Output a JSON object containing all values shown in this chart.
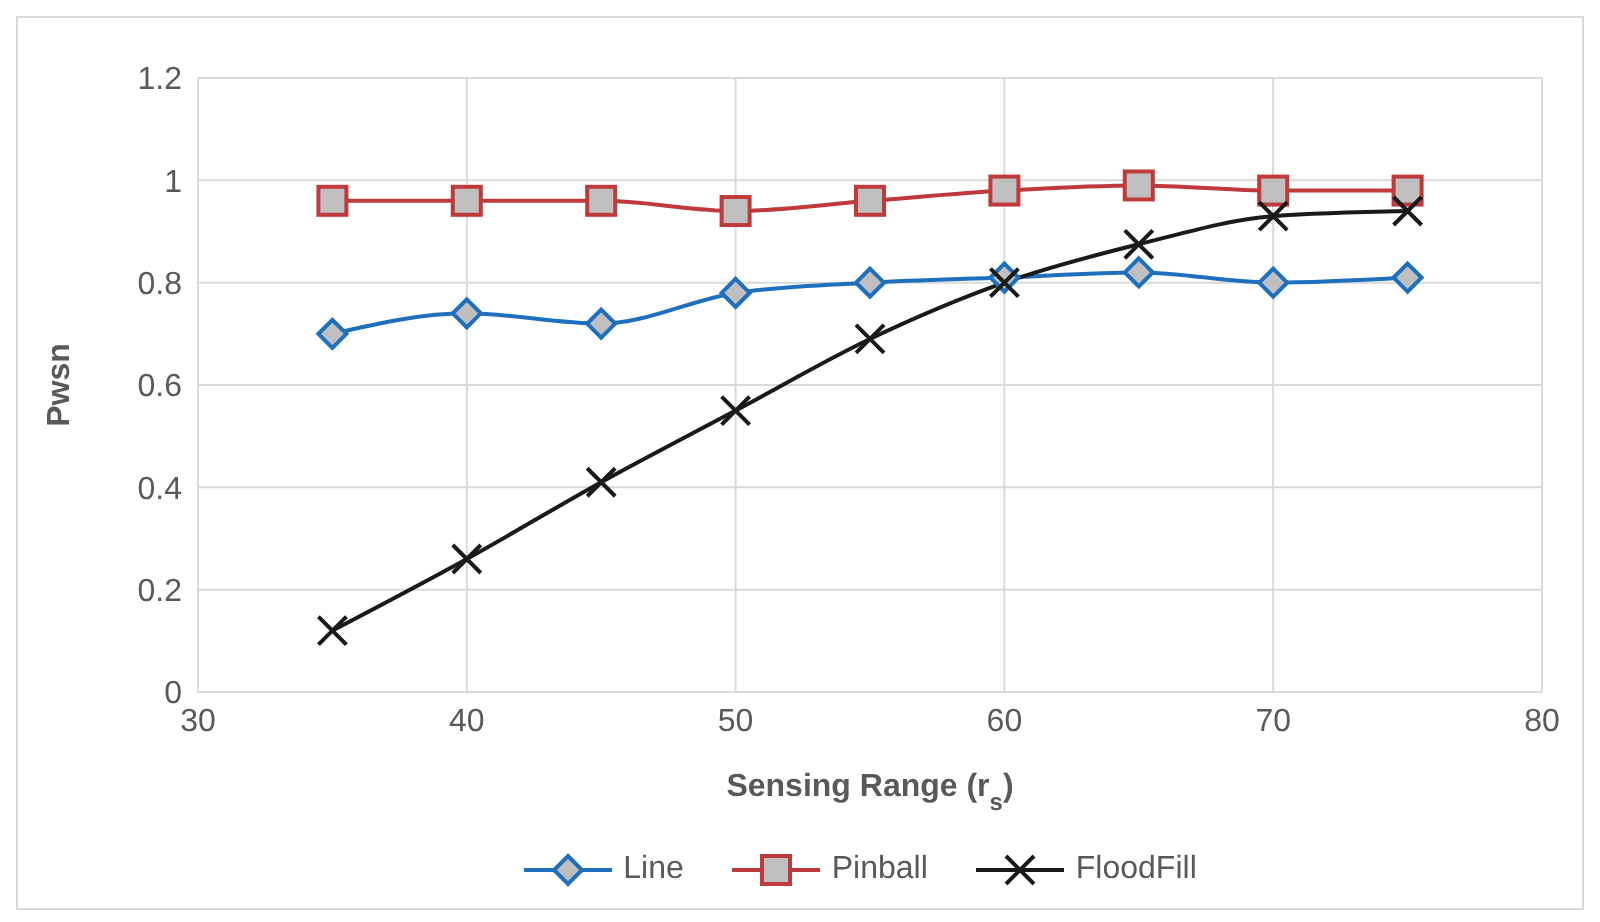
{
  "chart_data": {
    "type": "line",
    "xlabel": "Sensing Range (r$_{s}$)",
    "ylabel": "Pwsn",
    "x": [
      35,
      40,
      45,
      50,
      55,
      60,
      65,
      70,
      75
    ],
    "series": [
      {
        "name": "Line",
        "color": "#1f6fbf",
        "marker": "diamond",
        "values": [
          0.7,
          0.74,
          0.72,
          0.78,
          0.8,
          0.81,
          0.82,
          0.8,
          0.81
        ]
      },
      {
        "name": "Pinball",
        "color": "#c0393b",
        "marker": "square",
        "values": [
          0.96,
          0.96,
          0.96,
          0.94,
          0.96,
          0.98,
          0.99,
          0.98,
          0.98
        ]
      },
      {
        "name": "FloodFill",
        "color": "#1a1a1a",
        "marker": "cross",
        "values": [
          0.12,
          0.26,
          0.41,
          0.55,
          0.69,
          0.8,
          0.875,
          0.93,
          0.94
        ]
      }
    ],
    "xlim": [
      30,
      80
    ],
    "xticks": [
      30,
      40,
      50,
      60,
      70,
      80
    ],
    "ylim": [
      0,
      1.2
    ],
    "yticks": [
      0,
      0.2,
      0.4,
      0.6,
      0.8,
      1,
      1.2
    ],
    "grid": true,
    "legend": "bottom",
    "line_style": "solid"
  }
}
